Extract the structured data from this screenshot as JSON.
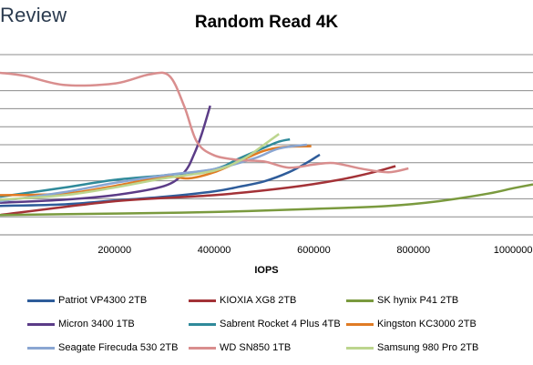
{
  "logo": "Review",
  "chart_data": {
    "type": "line",
    "title": "Random Read 4K",
    "xlabel": "IOPS",
    "ylabel": "",
    "xlim": [
      -30000,
      1040000
    ],
    "ylim": [
      0,
      1
    ],
    "x_ticks": [
      200000,
      400000,
      600000,
      800000,
      1000000
    ],
    "x_tick_labels": [
      "200000",
      "400000",
      "600000",
      "800000",
      "1000000"
    ],
    "y_gridlines": 10,
    "grid": true,
    "legend_position": "bottom",
    "series": [
      {
        "name": "Patriot VP4300 2TB",
        "color": "#2e5c9a",
        "x": [
          -30000,
          100000,
          200000,
          300000,
          400000,
          450000,
          500000,
          550000,
          585000,
          612000
        ],
        "y": [
          0.13,
          0.14,
          0.165,
          0.19,
          0.225,
          0.255,
          0.29,
          0.35,
          0.41,
          0.465
        ]
      },
      {
        "name": "KIOXIA XG8 2TB",
        "color": "#a33237",
        "x": [
          -30000,
          200000,
          400000,
          550000,
          650000,
          720000,
          764000
        ],
        "y": [
          0.07,
          0.16,
          0.2,
          0.25,
          0.3,
          0.35,
          0.39
        ]
      },
      {
        "name": "SK hynix P41 2TB",
        "color": "#7a9a3e",
        "x": [
          -30000,
          200000,
          400000,
          600000,
          750000,
          850000,
          950000,
          1000000,
          1040000
        ],
        "y": [
          0.07,
          0.08,
          0.09,
          0.11,
          0.13,
          0.16,
          0.21,
          0.245,
          0.27
        ]
      },
      {
        "name": "Micron 3400 1TB",
        "color": "#5b3c87",
        "x": [
          -30000,
          100000,
          200000,
          300000,
          340000,
          360000,
          375000,
          392000
        ],
        "y": [
          0.15,
          0.17,
          0.2,
          0.26,
          0.35,
          0.47,
          0.6,
          0.785
        ]
      },
      {
        "name": "Sabrent Rocket 4 Plus 4TB",
        "color": "#2f8a9a",
        "x": [
          -30000,
          100000,
          200000,
          300000,
          400000,
          450000,
          500000,
          530000,
          552000
        ],
        "y": [
          0.19,
          0.25,
          0.3,
          0.33,
          0.37,
          0.44,
          0.51,
          0.55,
          0.565
        ]
      },
      {
        "name": "Kingston KC3000 2TB",
        "color": "#e07b24",
        "x": [
          -30000,
          100000,
          200000,
          300000,
          350000,
          400000,
          450000,
          500000,
          540000,
          595000
        ],
        "y": [
          0.2,
          0.21,
          0.26,
          0.32,
          0.31,
          0.35,
          0.42,
          0.49,
          0.515,
          0.52
        ]
      },
      {
        "name": "Seagate Firecuda 530 2TB",
        "color": "#8aa6d2",
        "x": [
          -30000,
          100000,
          200000,
          300000,
          400000,
          480000,
          530000,
          586000
        ],
        "y": [
          0.16,
          0.22,
          0.28,
          0.33,
          0.37,
          0.44,
          0.505,
          0.53
        ]
      },
      {
        "name": "WD SN850 1TB",
        "color": "#d98e8e",
        "x": [
          -30000,
          20000,
          100000,
          200000,
          270000,
          310000,
          340000,
          365000,
          400000,
          450000,
          500000,
          550000,
          600000,
          640000,
          700000,
          750000,
          790000
        ],
        "y": [
          1.0,
          0.98,
          0.92,
          0.93,
          0.99,
          0.98,
          0.78,
          0.55,
          0.46,
          0.43,
          0.42,
          0.38,
          0.4,
          0.41,
          0.37,
          0.35,
          0.375
        ]
      },
      {
        "name": "Samsung 980 Pro 2TB",
        "color": "#bcd58e",
        "x": [
          -30000,
          100000,
          200000,
          300000,
          400000,
          460000,
          500000,
          530000
        ],
        "y": [
          0.17,
          0.2,
          0.25,
          0.31,
          0.36,
          0.44,
          0.53,
          0.6
        ]
      }
    ]
  }
}
